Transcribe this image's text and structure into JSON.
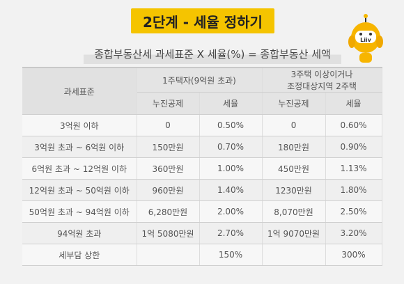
{
  "header": {
    "title": "2단계 - 세율 정하기",
    "formula": "종합부동산세 과세표준 X 세율(%) = 종합부동산 세액",
    "robot_badge": "Liiv"
  },
  "table": {
    "col_base": "과세표준",
    "group1": "1주택자(9억원 초과)",
    "group2_line1": "3주택 이상이거나",
    "group2_line2": "조정대상지역 2주택",
    "sub_deduction": "누진공제",
    "sub_rate": "세율",
    "rows": [
      {
        "base": "3억원 이하",
        "d1": "0",
        "r1": "0.50%",
        "d2": "0",
        "r2": "0.60%"
      },
      {
        "base": "3억원 초과 ~ 6억원 이하",
        "d1": "150만원",
        "r1": "0.70%",
        "d2": "180만원",
        "r2": "0.90%"
      },
      {
        "base": "6억원 초과 ~ 12억원 이하",
        "d1": "360만원",
        "r1": "1.00%",
        "d2": "450만원",
        "r2": "1.13%"
      },
      {
        "base": "12억원 초과 ~ 50억원 이하",
        "d1": "960만원",
        "r1": "1.40%",
        "d2": "1230만원",
        "r2": "1.80%"
      },
      {
        "base": "50억원 초과 ~ 94억원 이하",
        "d1": "6,280만원",
        "r1": "2.00%",
        "d2": "8,070만원",
        "r2": "2.50%"
      },
      {
        "base": "94억원 초과",
        "d1": "1억 5080만원",
        "r1": "2.70%",
        "d2": "1억 9070만원",
        "r2": "3.20%"
      },
      {
        "base": "세부담 상한",
        "d1": "",
        "r1": "150%",
        "d2": "",
        "r2": "300%"
      }
    ]
  }
}
